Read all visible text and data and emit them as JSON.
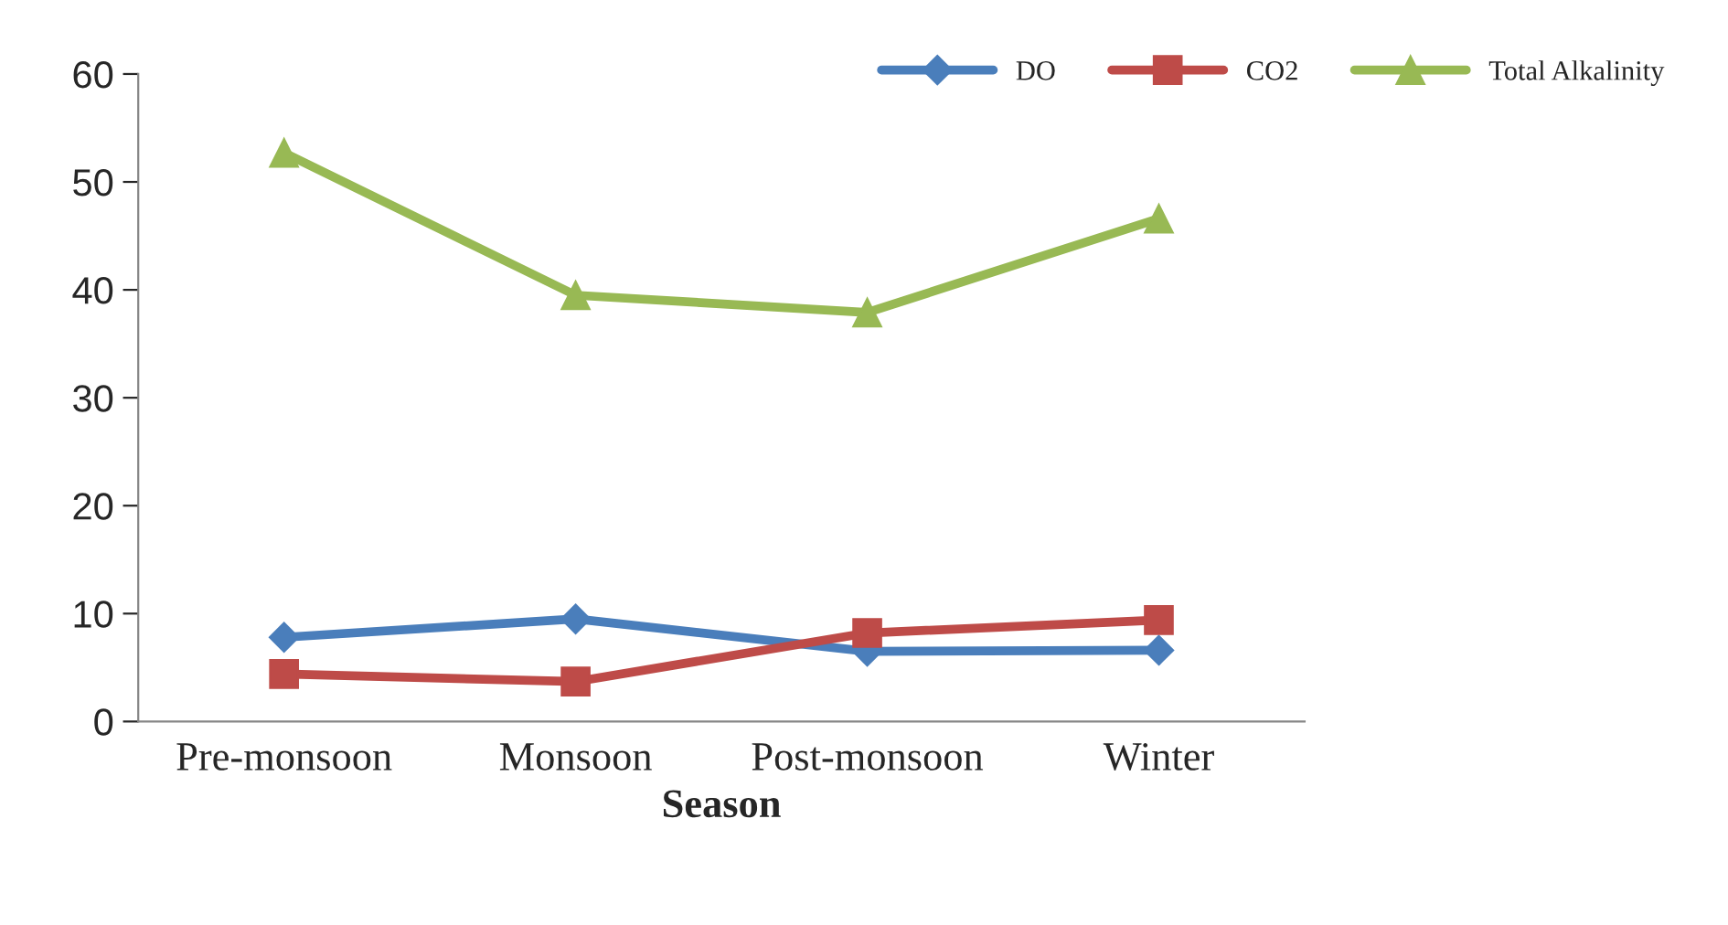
{
  "chart_data": {
    "type": "line",
    "xlabel": "Season",
    "categories": [
      "Pre-monsoon",
      "Monsoon",
      "Post-monsoon",
      "Winter"
    ],
    "series": [
      {
        "name": "DO",
        "color": "#4a7ebb",
        "marker": "diamond",
        "values": [
          7.8,
          9.5,
          6.5,
          6.6
        ]
      },
      {
        "name": "CO2",
        "color": "#be4b48",
        "marker": "square",
        "values": [
          4.4,
          3.7,
          8.2,
          9.4
        ]
      },
      {
        "name": "Total Alkalinity",
        "color": "#98b954",
        "marker": "triangle",
        "values": [
          52.7,
          39.5,
          37.9,
          46.6
        ]
      }
    ],
    "ylim": [
      0,
      60
    ],
    "yticks": [
      0,
      10,
      20,
      30,
      40,
      50,
      60
    ],
    "grid": false,
    "legend": "top right",
    "line_style": "solid"
  }
}
